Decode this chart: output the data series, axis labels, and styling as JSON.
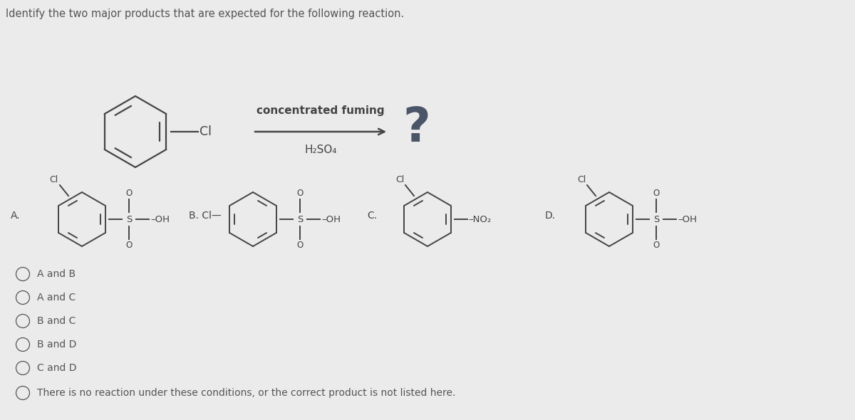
{
  "background_color": "#ebebeb",
  "title_text": "Identify the two major products that are expected for the following reaction.",
  "reaction_label_top": "concentrated fuming",
  "reaction_label_bottom": "H₂SO₄",
  "question_mark": "?",
  "choices": [
    "A and B",
    "A and C",
    "B and C",
    "B and D",
    "C and D",
    "There is no reaction under these conditions, or the correct product is not listed here."
  ],
  "text_color": "#555555",
  "dark_color": "#444444",
  "line_color": "#555555"
}
